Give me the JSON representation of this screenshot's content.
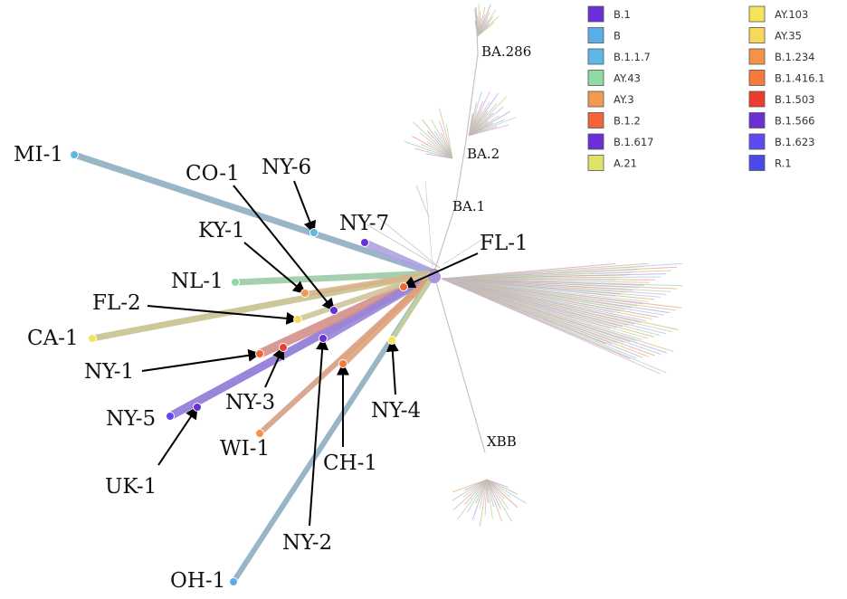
{
  "clades": [
    "BA.286",
    "BA.2",
    "BA.1",
    "XBB"
  ],
  "legend": [
    {
      "label": "B.1",
      "color": "#6a2fd6"
    },
    {
      "label": "B",
      "color": "#5aaee8"
    },
    {
      "label": "B.1.1.7",
      "color": "#5cb8e6"
    },
    {
      "label": "AY.43",
      "color": "#8fd9a3"
    },
    {
      "label": "AY.3",
      "color": "#f29a52"
    },
    {
      "label": "B.1.2",
      "color": "#f3643a"
    },
    {
      "label": "B.1.617",
      "color": "#6a2fd6"
    },
    {
      "label": "A.21",
      "color": "#dfe26a"
    },
    {
      "label": "AY.103",
      "color": "#f7e35a"
    },
    {
      "label": "AY.35",
      "color": "#f8d85a"
    },
    {
      "label": "B.1.234",
      "color": "#f59245"
    },
    {
      "label": "B.1.416.1",
      "color": "#f57a3c"
    },
    {
      "label": "B.1.503",
      "color": "#ee3b30"
    },
    {
      "label": "B.1.566",
      "color": "#6a2fd6"
    },
    {
      "label": "B.1.623",
      "color": "#5a4af0"
    },
    {
      "label": "R.1",
      "color": "#4a4ae8"
    }
  ],
  "samples": [
    {
      "label": "MI-1",
      "color": "#5cb8e6"
    },
    {
      "label": "NY-6",
      "color": "#5cb8e6"
    },
    {
      "label": "NY-7",
      "color": "#6a2fd6"
    },
    {
      "label": "CO-1",
      "color": "#6a2fd6"
    },
    {
      "label": "KY-1",
      "color": "#f29a52"
    },
    {
      "label": "NL-1",
      "color": "#8fd9a3"
    },
    {
      "label": "FL-1",
      "color": "#f3643a"
    },
    {
      "label": "FL-2",
      "color": "#f8d85a"
    },
    {
      "label": "CA-1",
      "color": "#f7e35a"
    },
    {
      "label": "NY-1",
      "color": "#f3643a"
    },
    {
      "label": "NY-3",
      "color": "#ee3b30"
    },
    {
      "label": "NY-2",
      "color": "#6a2fd6"
    },
    {
      "label": "CH-1",
      "color": "#f57a3c"
    },
    {
      "label": "NY-4",
      "color": "#f7e35a"
    },
    {
      "label": "NY-5",
      "color": "#5a4af0"
    },
    {
      "label": "UK-1",
      "color": "#6a2fd6"
    },
    {
      "label": "WI-1",
      "color": "#f59245"
    },
    {
      "label": "OH-1",
      "color": "#5aaee8"
    }
  ]
}
